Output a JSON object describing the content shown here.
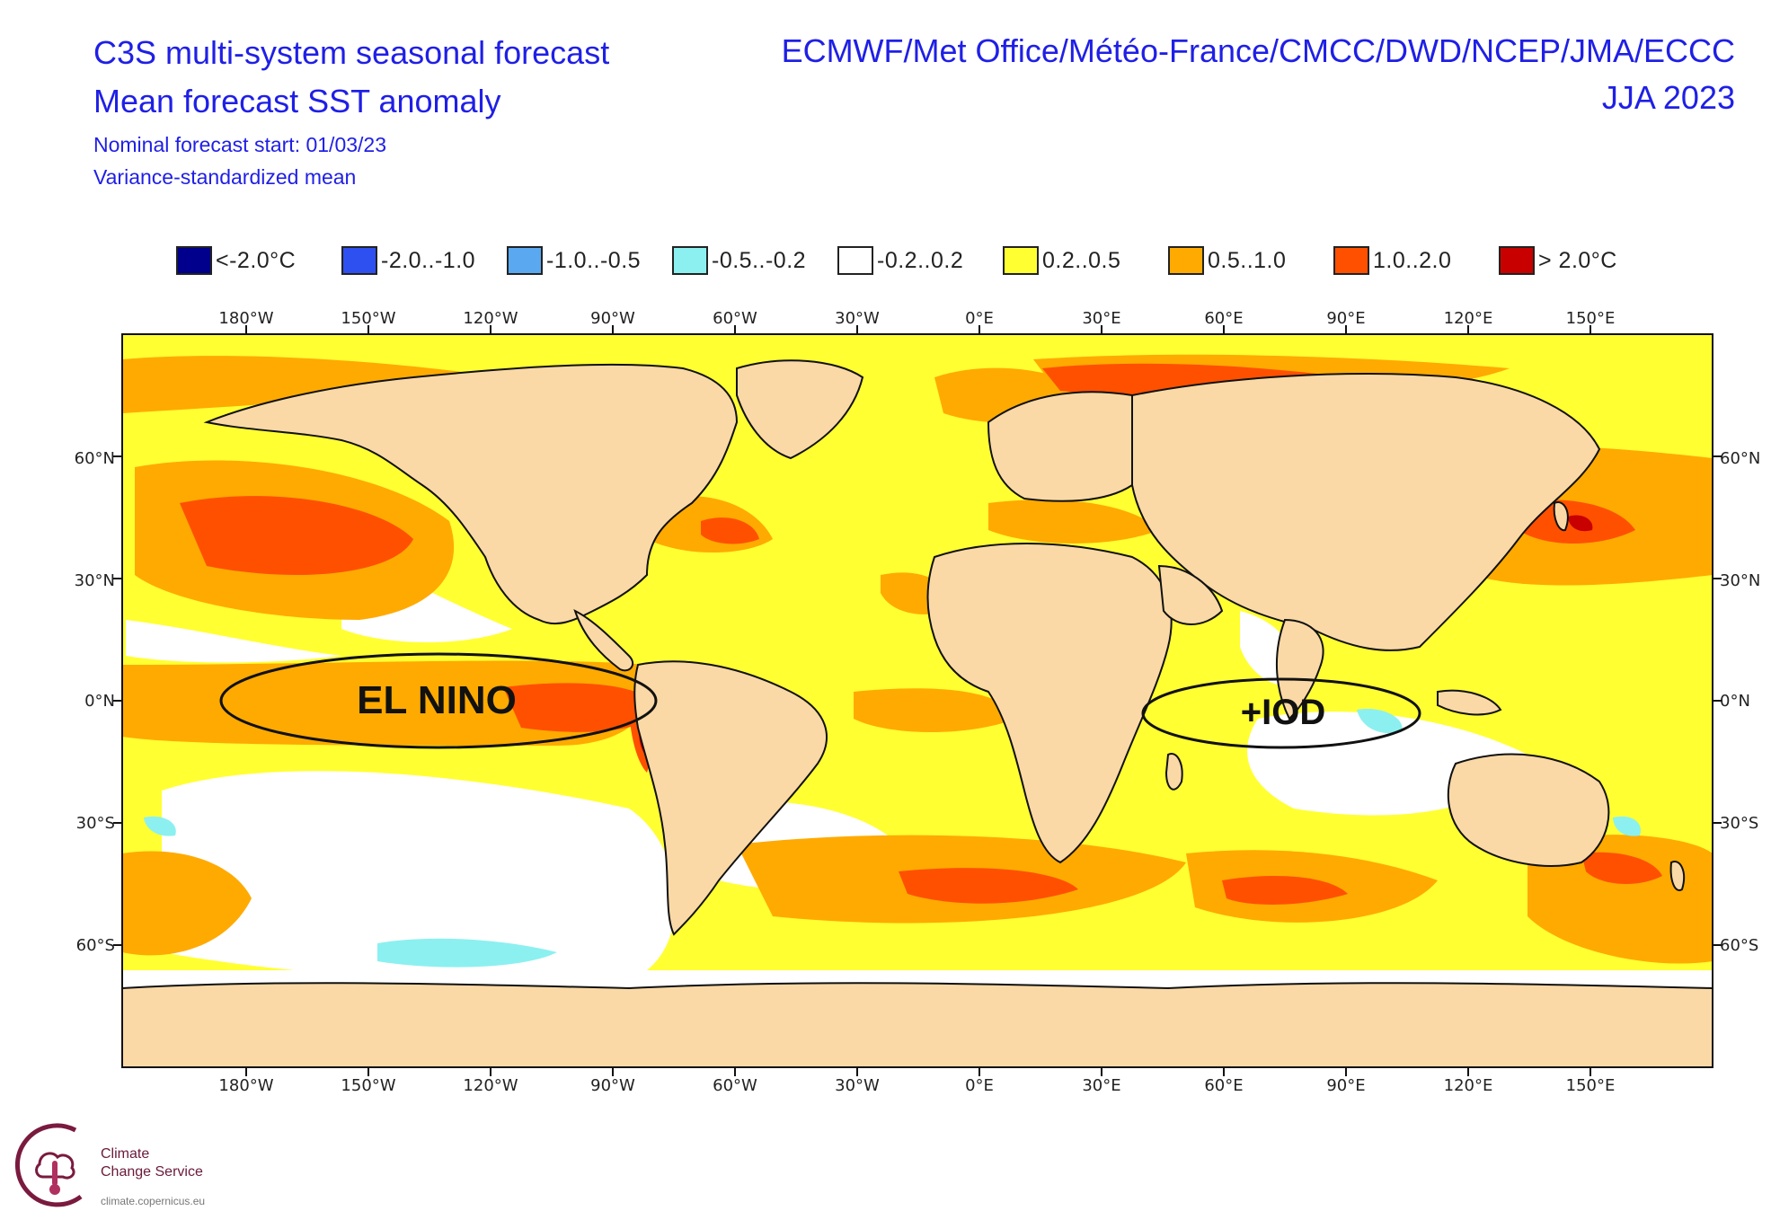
{
  "header": {
    "title": "C3S multi-system seasonal forecast",
    "subtitle": "Mean forecast SST anomaly",
    "start": "Nominal forecast start: 01/03/23",
    "method": "Variance-standardized mean",
    "centres": "ECMWF/Met Office/Météo-France/CMCC/DWD/NCEP/JMA/ECCC",
    "period": "JJA 2023"
  },
  "legend": [
    {
      "label": "<-2.0°C",
      "color": "#00008c"
    },
    {
      "label": "-2.0..-1.0",
      "color": "#2f50f0"
    },
    {
      "label": "-1.0..-0.5",
      "color": "#5aa8f0"
    },
    {
      "label": "-0.5..-0.2",
      "color": "#8cf0f0"
    },
    {
      "label": "-0.2..0.2",
      "color": "#ffffff"
    },
    {
      "label": "0.2..0.5",
      "color": "#ffff32"
    },
    {
      "label": "0.5..1.0",
      "color": "#ffaa00"
    },
    {
      "label": "1.0..2.0",
      "color": "#ff5000"
    },
    {
      "label": "> 2.0°C",
      "color": "#c80000"
    }
  ],
  "axes": {
    "lon_ticks": [
      "180°W",
      "150°W",
      "120°W",
      "90°W",
      "60°W",
      "30°W",
      "0°E",
      "30°E",
      "60°E",
      "90°E",
      "120°E",
      "150°E"
    ],
    "lat_ticks": [
      "60°N",
      "30°N",
      "0°N",
      "30°S",
      "60°S"
    ]
  },
  "colors": {
    "land": "#fad9a6",
    "ocean_neutral": "#ffffff",
    "warm_weak": "#ffff32",
    "warm_mod": "#ffaa00",
    "warm_strong": "#ff5000",
    "warm_extreme": "#c80000",
    "cool_weak": "#8cf0f0",
    "title_blue": "#1f1fe6"
  },
  "annotations": {
    "el_nino": "EL NINO",
    "iod": "+IOD"
  },
  "logo": {
    "line1": "Climate",
    "line2": "Change Service",
    "url": "climate.copernicus.eu"
  }
}
